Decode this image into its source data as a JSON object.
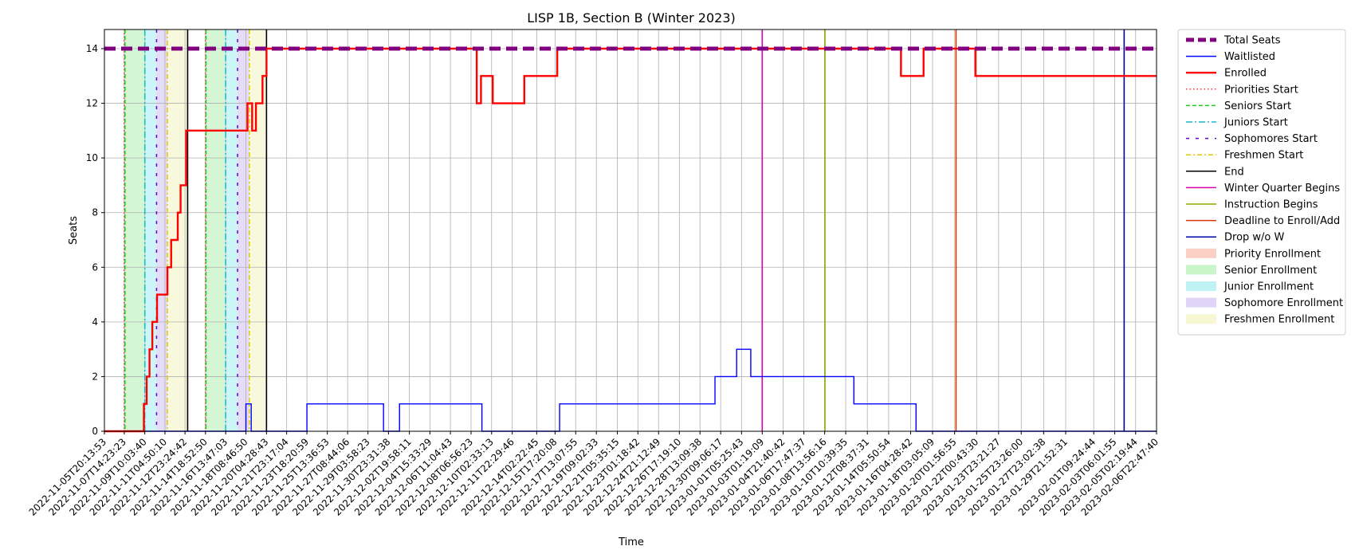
{
  "chart_data": {
    "type": "line",
    "title": "LISP 1B, Section B (Winter 2023)",
    "xlabel": "Time",
    "ylabel": "Seats",
    "xlim": [
      "2022-11-05T20:13:53",
      "2023-02-06T22:47:40"
    ],
    "ylim": [
      0,
      14.7
    ],
    "y_ticks": [
      0,
      2,
      4,
      6,
      8,
      10,
      12,
      14
    ],
    "grid": true,
    "legend_position": "outside-right",
    "x_tick_labels": [
      "2022-11-05T20:13:53",
      "2022-11-07T14:23:23",
      "2022-11-09T10:03:40",
      "2022-11-11T04:50:10",
      "2022-11-12T23:24:42",
      "2022-11-14T18:52:50",
      "2022-11-16T13:47:03",
      "2022-11-18T08:46:50",
      "2022-11-20T04:28:43",
      "2022-11-21T23:17:04",
      "2022-11-23T18:20:59",
      "2022-11-25T13:36:53",
      "2022-11-27T08:44:06",
      "2022-11-29T03:58:23",
      "2022-11-30T23:31:38",
      "2022-12-02T19:58:11",
      "2022-12-04T15:33:29",
      "2022-12-06T11:04:43",
      "2022-12-08T06:56:23",
      "2022-12-10T02:33:13",
      "2022-12-11T22:29:46",
      "2022-12-14T02:22:45",
      "2022-12-15T17:20:08",
      "2022-12-17T13:07:55",
      "2022-12-19T09:02:33",
      "2022-12-21T05:35:15",
      "2022-12-23T01:18:42",
      "2022-12-24T21:12:49",
      "2022-12-26T17:19:10",
      "2022-12-28T13:09:38",
      "2022-12-30T09:06:17",
      "2023-01-01T05:25:43",
      "2023-01-03T01:19:09",
      "2023-01-04T21:40:42",
      "2023-01-06T17:47:37",
      "2023-01-08T13:56:16",
      "2023-01-10T10:39:35",
      "2023-01-12T08:37:31",
      "2023-01-14T05:50:54",
      "2023-01-16T04:28:42",
      "2023-01-18T03:05:09",
      "2023-01-20T01:56:55",
      "2023-01-22T00:43:30",
      "2023-01-23T23:21:27",
      "2023-01-25T23:26:00",
      "2023-01-27T23:02:38",
      "2023-01-29T21:52:31",
      "2023-02-01T09:24:44",
      "2023-02-03T06:01:55",
      "2023-02-05T02:19:44",
      "2023-02-06T22:47:40"
    ],
    "series": [
      {
        "name": "Total Seats",
        "color": "#800080",
        "style": "dashed-thick",
        "x": [
          "2022-11-05T20:13:53",
          "2023-02-06T22:47:40"
        ],
        "y": [
          14,
          14
        ]
      },
      {
        "name": "Waitlisted",
        "color": "#0000ff",
        "style": "step",
        "x": [
          "2022-11-05T20:13:53",
          "2022-11-18T08:46:50",
          "2022-11-18T20:00:00",
          "2022-11-23T18:20:59",
          "2022-11-30T13:00:00",
          "2022-12-01T23:00:00",
          "2022-12-09T06:00:00",
          "2022-12-16T03:00:00",
          "2022-12-29T21:00:00",
          "2022-12-31T19:00:00",
          "2023-01-02T01:00:00",
          "2023-01-11T04:00:00",
          "2023-01-16T16:00:00",
          "2023-02-06T22:47:40"
        ],
        "y": [
          0,
          1,
          0,
          1,
          0,
          1,
          0,
          1,
          2,
          3,
          2,
          1,
          0,
          0
        ]
      },
      {
        "name": "Enrolled",
        "color": "#ff0000",
        "style": "step-thick",
        "x": [
          "2022-11-05T20:13:53",
          "2022-11-09T08:00:00",
          "2022-11-09T14:00:00",
          "2022-11-09T20:00:00",
          "2022-11-10T02:00:00",
          "2022-11-10T12:00:00",
          "2022-11-11T05:00:00",
          "2022-11-11T10:00:00",
          "2022-11-11T18:00:00",
          "2022-11-12T08:00:00",
          "2022-11-12T14:00:00",
          "2022-11-13T02:00:00",
          "2022-11-18T12:00:00",
          "2022-11-18T22:00:00",
          "2022-11-19T06:00:00",
          "2022-11-19T20:00:00",
          "2022-11-20T04:28:43",
          "2022-12-08T19:00:00",
          "2022-12-09T04:00:00",
          "2022-12-10T05:00:00",
          "2022-12-13T00:00:00",
          "2022-12-15T07:00:00",
          "2022-12-15T22:00:00",
          "2023-01-15T08:00:00",
          "2023-01-17T08:00:00",
          "2023-01-21T22:00:00",
          "2023-02-06T22:47:40"
        ],
        "y": [
          0,
          1,
          2,
          3,
          4,
          5,
          5,
          6,
          7,
          8,
          9,
          11,
          12,
          11,
          12,
          13,
          14,
          12,
          13,
          12,
          13,
          13,
          14,
          13,
          14,
          13,
          13
        ]
      }
    ],
    "events": [
      {
        "name": "Priorities Start",
        "color": "#ff3333",
        "style": "dotted",
        "x": [
          "2022-11-07T14:23:23",
          "2022-11-14T18:52:50"
        ]
      },
      {
        "name": "Seniors Start",
        "color": "#22cc22",
        "style": "dashed",
        "x": [
          "2022-11-07T16:00:00",
          "2022-11-14T20:00:00"
        ]
      },
      {
        "name": "Juniors Start",
        "color": "#11bbcc",
        "style": "dashdot",
        "x": [
          "2022-11-09T10:03:40",
          "2022-11-16T13:47:03"
        ]
      },
      {
        "name": "Sophomores Start",
        "color": "#6600cc",
        "style": "loose-dashed",
        "x": [
          "2022-11-10T11:00:00",
          "2022-11-17T15:00:00"
        ]
      },
      {
        "name": "Freshmen Start",
        "color": "#ddcc00",
        "style": "dashdot-light",
        "x": [
          "2022-11-11T10:00:00",
          "2022-11-18T16:00:00"
        ]
      },
      {
        "name": "End",
        "color": "#000000",
        "style": "solid",
        "x": [
          "2022-11-13T05:00:00",
          "2022-11-20T04:28:43"
        ]
      },
      {
        "name": "Winter Quarter Begins",
        "color": "#dd00aa",
        "style": "solid",
        "x": [
          "2023-01-03T01:19:09"
        ]
      },
      {
        "name": "Instruction Begins",
        "color": "#88aa00",
        "style": "solid",
        "x": [
          "2023-01-08T14:30:00"
        ]
      },
      {
        "name": "Deadline to Enroll/Add",
        "color": "#dd3300",
        "style": "solid",
        "x": [
          "2023-01-20T05:00:00"
        ]
      },
      {
        "name": "Drop w/o W",
        "color": "#0000aa",
        "style": "solid",
        "x": [
          "2023-02-04T02:00:00"
        ]
      }
    ],
    "spans": [
      {
        "name": "Priority Enrollment",
        "color": "#f8c0b0",
        "ranges": [
          [
            "2022-11-07T14:23:23",
            "2022-11-07T16:00:00"
          ],
          [
            "2022-11-14T18:52:50",
            "2022-11-14T20:00:00"
          ]
        ]
      },
      {
        "name": "Senior Enrollment",
        "color": "#b8f0b8",
        "ranges": [
          [
            "2022-11-07T16:00:00",
            "2022-11-09T10:03:40"
          ],
          [
            "2022-11-14T20:00:00",
            "2022-11-16T13:47:03"
          ]
        ]
      },
      {
        "name": "Junior Enrollment",
        "color": "#a8eef0",
        "ranges": [
          [
            "2022-11-09T10:03:40",
            "2022-11-10T11:00:00"
          ],
          [
            "2022-11-16T13:47:03",
            "2022-11-17T15:00:00"
          ]
        ]
      },
      {
        "name": "Sophomore Enrollment",
        "color": "#d4c4f4",
        "ranges": [
          [
            "2022-11-10T11:00:00",
            "2022-11-11T10:00:00"
          ],
          [
            "2022-11-17T15:00:00",
            "2022-11-18T16:00:00"
          ]
        ]
      },
      {
        "name": "Freshmen Enrollment",
        "color": "#f4f4c4",
        "ranges": [
          [
            "2022-11-11T10:00:00",
            "2022-11-13T05:00:00"
          ],
          [
            "2022-11-18T16:00:00",
            "2022-11-20T04:28:43"
          ]
        ]
      }
    ]
  }
}
